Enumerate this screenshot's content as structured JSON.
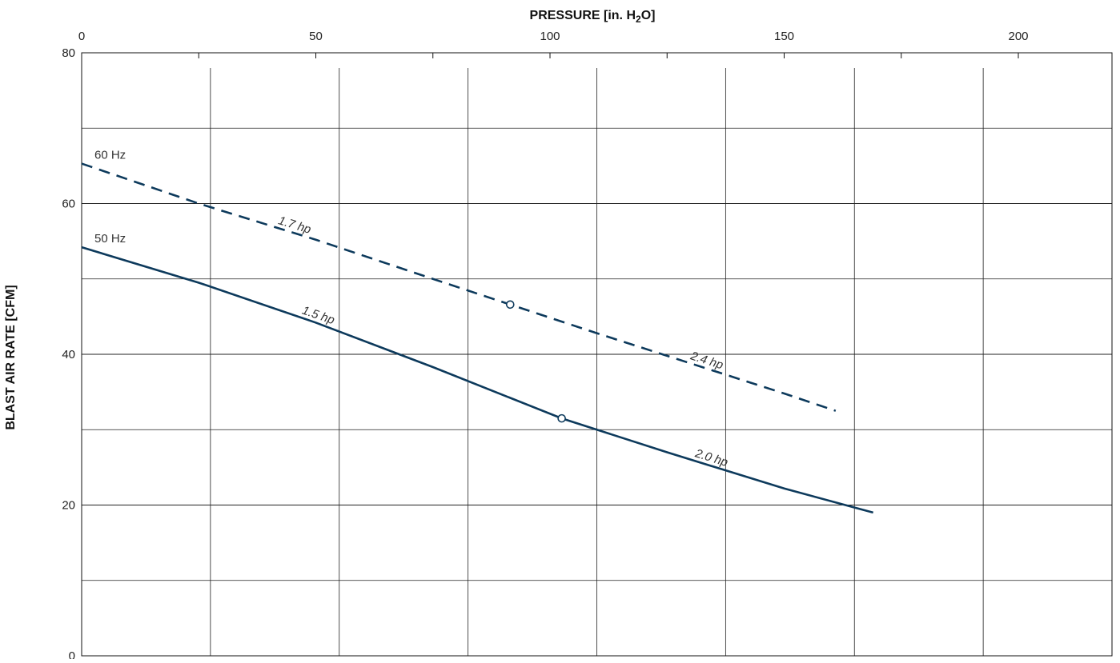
{
  "chart_data": {
    "type": "line",
    "title": "",
    "xlabel_prefix": "PRESSURE  [in. H",
    "xlabel_sub": "2",
    "xlabel_suffix": "O]",
    "ylabel": "BLAST AIR RATE  [CFM]",
    "xlim": [
      0,
      220
    ],
    "ylim": [
      0,
      80
    ],
    "x_ticks": [
      0,
      50,
      100,
      150,
      200
    ],
    "x_tick_labels": [
      "0",
      "50",
      "100",
      "150",
      "200"
    ],
    "y_ticks": [
      0,
      20,
      40,
      60,
      80
    ],
    "y_tick_labels": [
      "0",
      "20",
      "40",
      "60",
      "80"
    ],
    "grid": true,
    "series": [
      {
        "name": "60 Hz",
        "style": "dashed",
        "color": "#0d3a5c",
        "x": [
          0,
          25,
          50,
          75,
          91.5,
          110,
          130,
          150,
          161
        ],
        "y": [
          65.3,
          60.0,
          55.2,
          50.0,
          46.6,
          42.8,
          38.8,
          34.8,
          32.5
        ],
        "marker": {
          "x": 91.5,
          "y": 46.6
        }
      },
      {
        "name": "50 Hz",
        "style": "solid",
        "color": "#0d3a5c",
        "x": [
          0,
          25,
          50,
          75,
          102.5,
          125,
          150,
          169
        ],
        "y": [
          54.2,
          49.5,
          44.2,
          38.3,
          31.5,
          27.0,
          22.2,
          19.0
        ],
        "marker": {
          "x": 102.5,
          "y": 31.5
        }
      }
    ],
    "annotations": [
      {
        "text": "1.7 hp",
        "series": "60 Hz",
        "x": 45
      },
      {
        "text": "2.4 hp",
        "series": "60 Hz",
        "x": 133
      },
      {
        "text": "1.5 hp",
        "series": "50 Hz",
        "x": 50
      },
      {
        "text": "2.0 hp",
        "series": "50 Hz",
        "x": 134
      }
    ]
  }
}
